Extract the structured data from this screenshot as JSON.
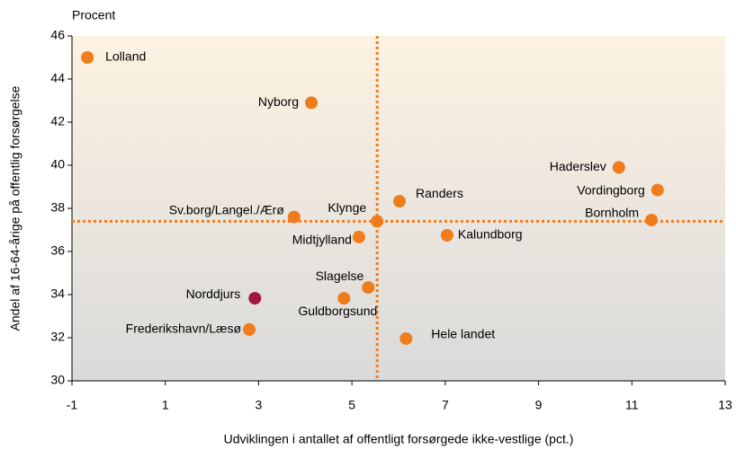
{
  "chart_data": {
    "type": "scatter",
    "y_unit_label": "Procent",
    "ylabel": "Andel af 16-64-årige på offentlig forsørgelse",
    "xlabel": "Udviklingen i antallet af offentligt forsørgede ikke-vestlige (pct.)",
    "labels": [
      "Lolland",
      "Nyborg",
      "Haderslev",
      "Vordingborg",
      "Randers",
      "Sv.borg/Langel./Ærø",
      "Klynge",
      "Bornholm",
      "Midtjylland",
      "Kalundborg",
      "Slagelse",
      "Norddjurs",
      "Guldborgsund",
      "Frederikshavn/Læsø",
      "Hele landet"
    ],
    "x": [
      -0.67,
      4.13,
      10.72,
      11.55,
      6.02,
      3.76,
      5.54,
      11.42,
      5.15,
      7.04,
      5.35,
      2.92,
      4.83,
      2.8,
      6.16
    ],
    "values": [
      45.0,
      42.9,
      39.9,
      38.85,
      38.33,
      37.6,
      37.4,
      37.46,
      36.67,
      36.75,
      34.33,
      33.83,
      33.83,
      32.38,
      31.96
    ],
    "colors": [
      "#f07c1c",
      "#f07c1c",
      "#f07c1c",
      "#f07c1c",
      "#f07c1c",
      "#f07c1c",
      "#f07c1c",
      "#f07c1c",
      "#f07c1c",
      "#f07c1c",
      "#f07c1c",
      "#a3173d",
      "#f07c1c",
      "#f07c1c",
      "#f07c1c"
    ],
    "reference_lines": {
      "x": 5.54,
      "y": 37.4,
      "color": "#f07c1c"
    },
    "xlim": [
      -1,
      13
    ],
    "xticks": [
      -1,
      1,
      3,
      5,
      7,
      9,
      11,
      13
    ],
    "ylim": [
      30,
      46
    ],
    "yticks": [
      30,
      32,
      34,
      36,
      38,
      40,
      42,
      44,
      46
    ]
  }
}
